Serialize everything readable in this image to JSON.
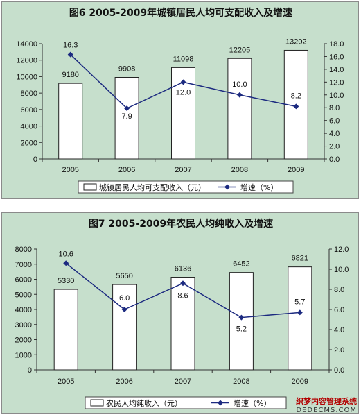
{
  "chart_data": [
    {
      "type": "bar",
      "title": "图6    2005-2009年城镇居民人均可支配收入及增速",
      "categories": [
        "2005",
        "2006",
        "2007",
        "2008",
        "2009"
      ],
      "series": [
        {
          "name": "城镇居民人均可支配收入（元）",
          "type": "bar",
          "values": [
            9180,
            9908,
            11098,
            12205,
            13202
          ],
          "labels": [
            "9180",
            "9908",
            "11098",
            "12205",
            "13202"
          ],
          "axis": "left"
        },
        {
          "name": "增速（%）",
          "type": "line",
          "values": [
            16.3,
            7.9,
            12.0,
            10.0,
            8.2
          ],
          "labels": [
            "16.3",
            "7.9",
            "12.0",
            "10.0",
            "8.2"
          ],
          "axis": "right",
          "color": "#1c2a80"
        }
      ],
      "ylim": [
        0,
        14000
      ],
      "yticks": [
        "0",
        "2000",
        "4000",
        "6000",
        "8000",
        "10000",
        "12000",
        "14000"
      ],
      "y2lim": [
        0,
        18
      ],
      "y2ticks": [
        "0.0",
        "2.0",
        "4.0",
        "6.0",
        "8.0",
        "10.0",
        "12.0",
        "14.0",
        "16.0",
        "18.0"
      ],
      "legend": "bottom",
      "grid": false,
      "background": "#c6dfcc"
    },
    {
      "type": "bar",
      "title": "图7    2005-2009年农民人均纯收入及增速",
      "categories": [
        "2005",
        "2006",
        "2007",
        "2008",
        "2009"
      ],
      "series": [
        {
          "name": "农民人均纯收入（元）",
          "type": "bar",
          "values": [
            5330,
            5650,
            6136,
            6452,
            6821
          ],
          "labels": [
            "5330",
            "5650",
            "6136",
            "6452",
            "6821"
          ],
          "axis": "left"
        },
        {
          "name": "增速（%）",
          "type": "line",
          "values": [
            10.6,
            6.0,
            8.6,
            5.2,
            5.7
          ],
          "labels": [
            "10.6",
            "6.0",
            "8.6",
            "5.2",
            "5.7"
          ],
          "axis": "right",
          "color": "#1c2a80"
        }
      ],
      "ylim": [
        0,
        8000
      ],
      "yticks": [
        "0",
        "1000",
        "2000",
        "3000",
        "4000",
        "5000",
        "6000",
        "7000",
        "8000"
      ],
      "y2lim": [
        0,
        12
      ],
      "y2ticks": [
        "0.0",
        "2.0",
        "4.0",
        "6.0",
        "8.0",
        "10.0",
        "12.0"
      ],
      "legend": "bottom",
      "grid": false,
      "background": "#c6dfcc"
    }
  ],
  "watermark": {
    "line1": "织梦内容管理系统",
    "line2": "DEDECMS.COM"
  }
}
